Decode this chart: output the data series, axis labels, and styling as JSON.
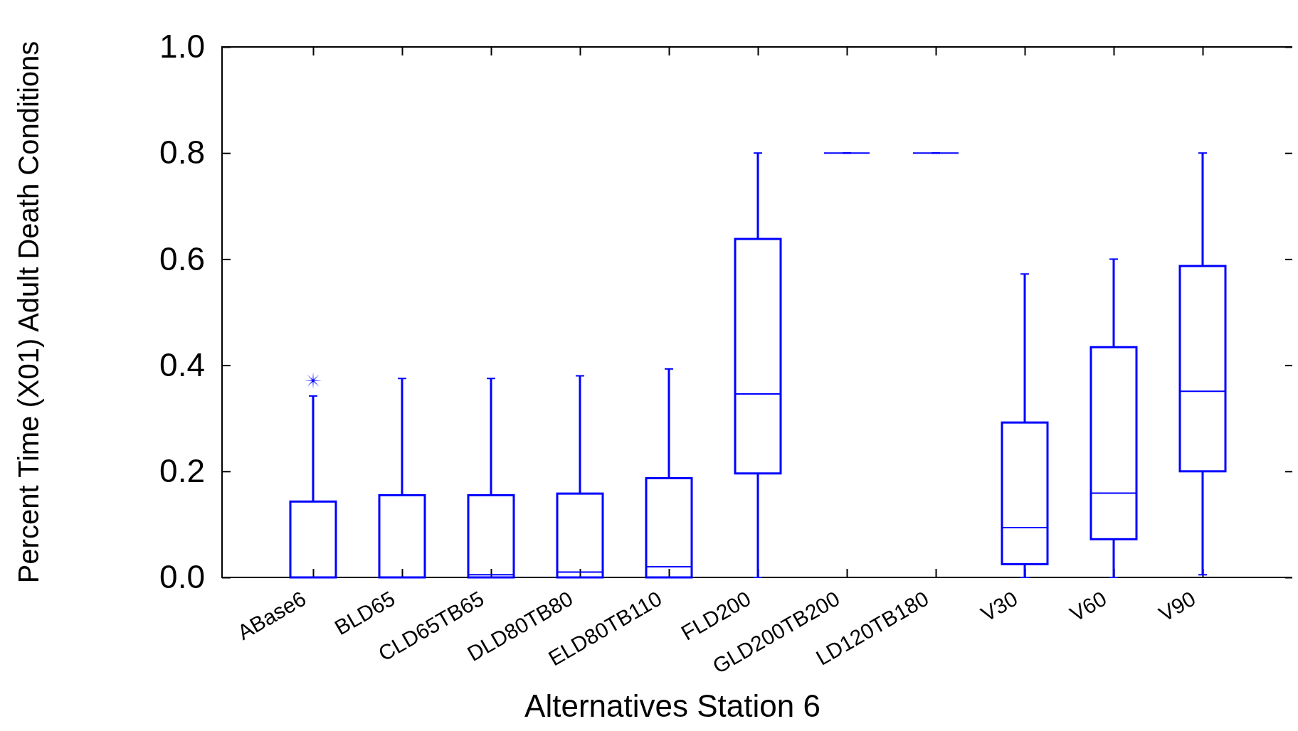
{
  "chart_data": {
    "type": "box",
    "xlabel": "Alternatives Station 6",
    "ylabel": "Percent Time (X01) Adult Death Conditions",
    "categories": [
      "ABase6",
      "BLD65",
      "CLD65TB65",
      "DLD80TB80",
      "ELD80TB110",
      "FLD200",
      "GLD200TB200",
      "LD120TB180",
      "V30",
      "V60",
      "V90"
    ],
    "color": "#0000ff",
    "boxes": [
      {
        "low": 0,
        "q1": 0,
        "median": 0,
        "q3": 0.143,
        "high": 0.342,
        "outliers": [
          0.371
        ]
      },
      {
        "low": 0,
        "q1": 0,
        "median": 0,
        "q3": 0.155,
        "high": 0.375
      },
      {
        "low": 0,
        "q1": 0,
        "median": 0.005,
        "q3": 0.155,
        "high": 0.375
      },
      {
        "low": 0,
        "q1": 0,
        "median": 0.01,
        "q3": 0.158,
        "high": 0.38
      },
      {
        "low": 0,
        "q1": 0,
        "median": 0.02,
        "q3": 0.187,
        "high": 0.393
      },
      {
        "low": 0,
        "q1": 0.196,
        "median": 0.346,
        "q3": 0.638,
        "high": 0.8
      },
      {
        "low": 0.8,
        "q1": 0.8,
        "median": 0.8,
        "q3": 0.8,
        "high": 0.8
      },
      {
        "low": 0.8,
        "q1": 0.8,
        "median": 0.8,
        "q3": 0.8,
        "high": 0.8
      },
      {
        "low": 0,
        "q1": 0.025,
        "median": 0.094,
        "q3": 0.292,
        "high": 0.572
      },
      {
        "low": 0,
        "q1": 0.072,
        "median": 0.159,
        "q3": 0.434,
        "high": 0.6
      },
      {
        "low": 0.005,
        "q1": 0.2,
        "median": 0.351,
        "q3": 0.587,
        "high": 0.8
      }
    ],
    "ylim": [
      0,
      1
    ],
    "yticks": [
      {
        "value": 0,
        "label": "0.0"
      },
      {
        "value": 0.2,
        "label": "0.2"
      },
      {
        "value": 0.4,
        "label": "0.4"
      },
      {
        "value": 0.6,
        "label": "0.6"
      },
      {
        "value": 0.8,
        "label": "0.8"
      },
      {
        "value": 1,
        "label": "1.0"
      }
    ],
    "grid": false
  }
}
